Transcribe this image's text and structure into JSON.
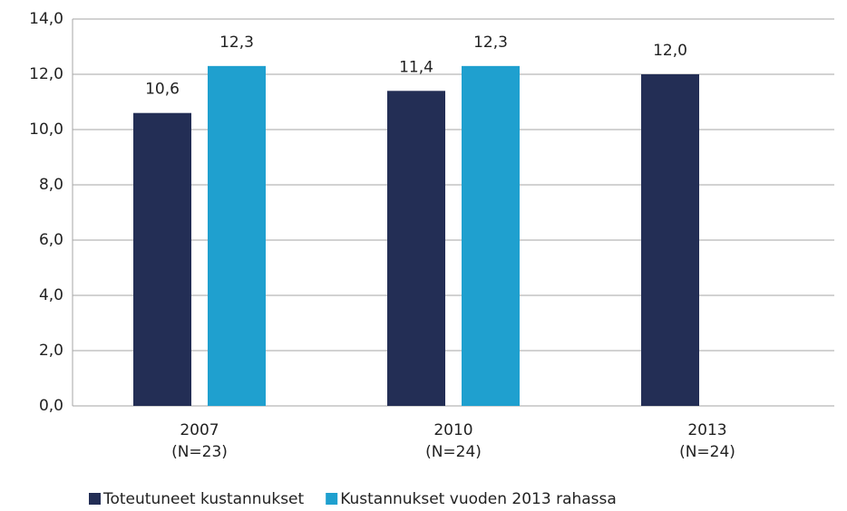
{
  "chart_data": {
    "type": "bar",
    "categories": [
      [
        "2007",
        "(N=23)"
      ],
      [
        "2010",
        "(N=24)"
      ],
      [
        "2013",
        "(N=24)"
      ]
    ],
    "series": [
      {
        "name": "Toteutuneet kustannukset",
        "color": "#232e55",
        "values": [
          10.6,
          11.4,
          12.0
        ],
        "value_labels": [
          "10,6",
          "11,4",
          "12,0"
        ]
      },
      {
        "name": "Kustannukset vuoden 2013 rahassa",
        "color": "#1fa0cf",
        "values": [
          12.3,
          12.3,
          null
        ],
        "value_labels": [
          "12,3",
          "12,3",
          null
        ]
      }
    ],
    "ylim": [
      0,
      14
    ],
    "yticks": [
      {
        "value": 0,
        "label": "0,0"
      },
      {
        "value": 2,
        "label": "2,0"
      },
      {
        "value": 4,
        "label": "4,0"
      },
      {
        "value": 6,
        "label": "6,0"
      },
      {
        "value": 8,
        "label": "8,0"
      },
      {
        "value": 10,
        "label": "10,0"
      },
      {
        "value": 12,
        "label": "12,0"
      },
      {
        "value": 14,
        "label": "14,0"
      }
    ],
    "grid": true,
    "legend": "bottom"
  }
}
